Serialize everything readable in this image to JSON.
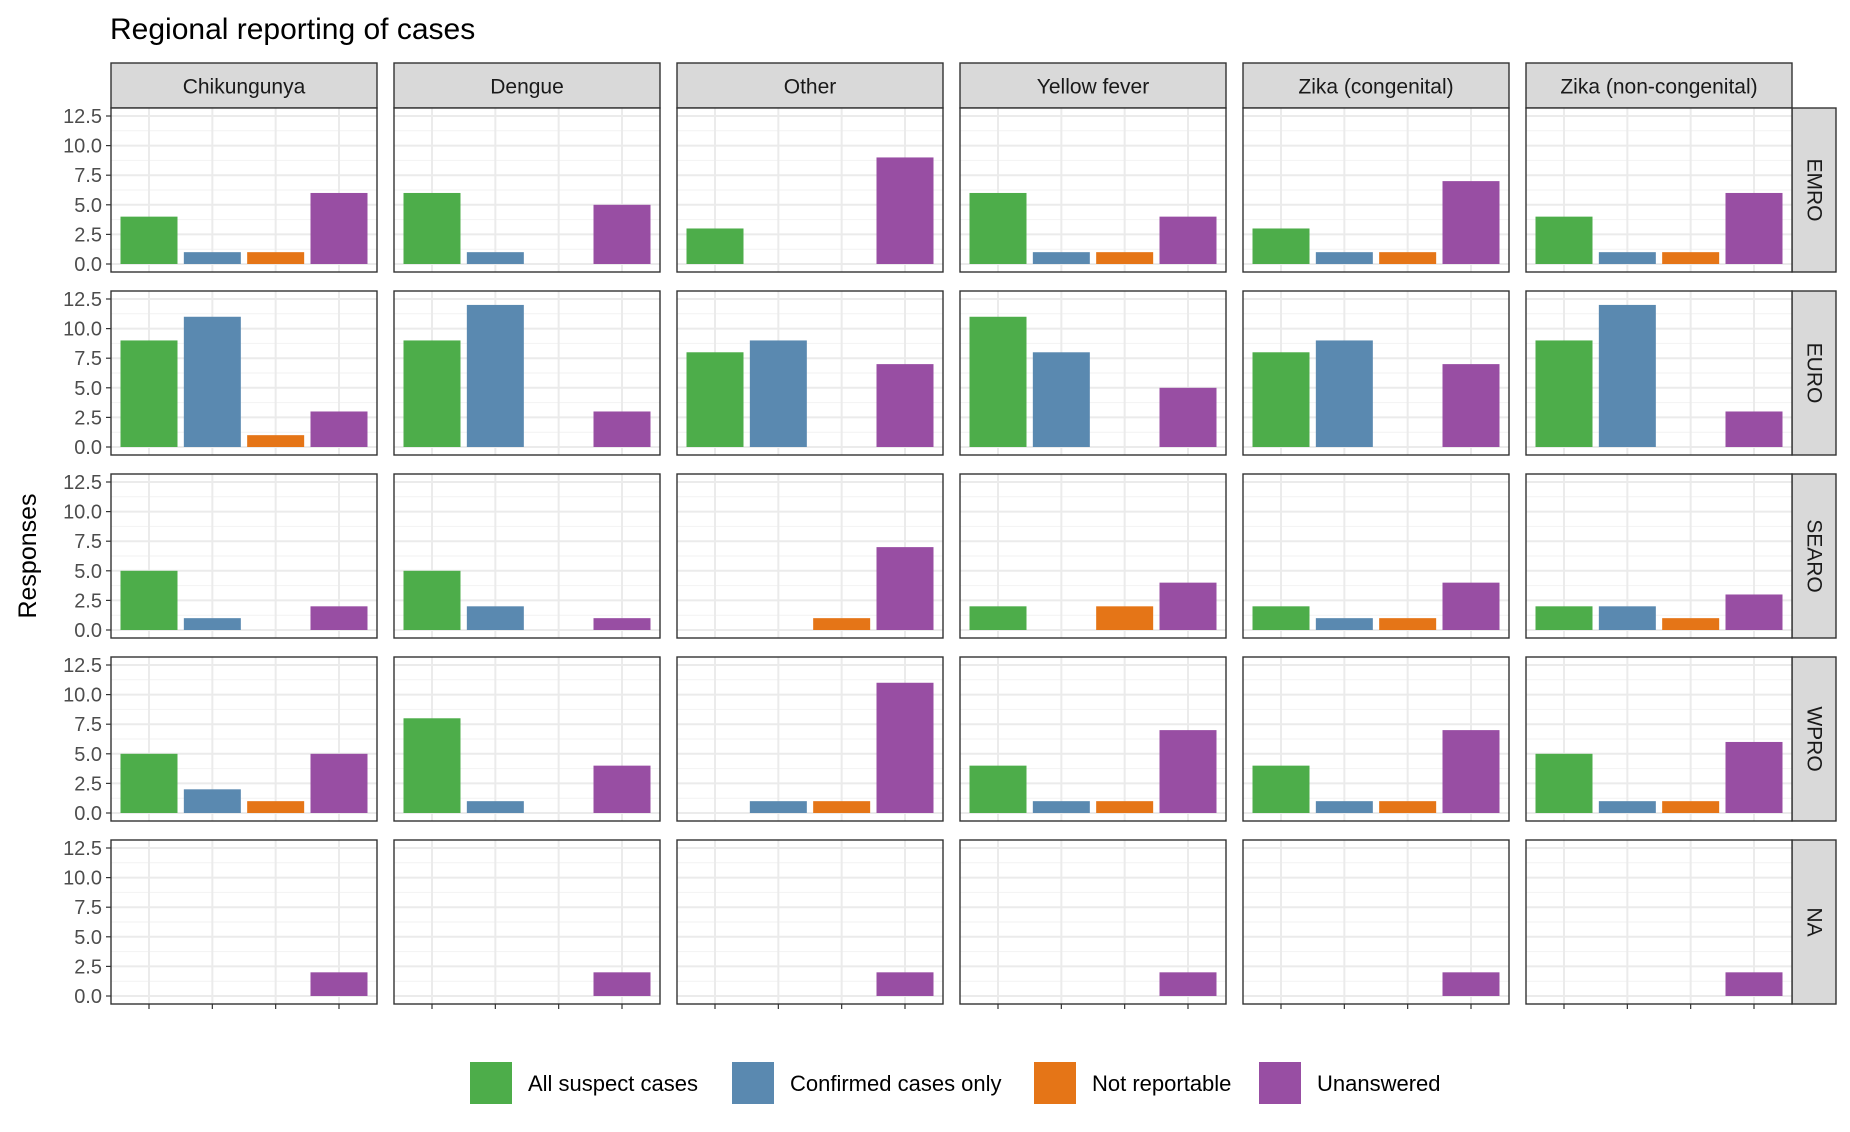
{
  "chart_data": {
    "type": "bar",
    "title": "Regional reporting of cases",
    "ylabel": "Responses",
    "xlabel": "",
    "ylim": [
      0,
      12.5
    ],
    "yticks": [
      "0.0",
      "2.5",
      "5.0",
      "7.5",
      "10.0",
      "12.5"
    ],
    "categories": [
      "All suspect cases",
      "Confirmed cases only",
      "Not reportable",
      "Unanswered"
    ],
    "colors": {
      "All suspect cases": "#4dad4a",
      "Confirmed cases only": "#5a89b0",
      "Not reportable": "#e57517",
      "Unanswered": "#984ea3"
    },
    "columns": [
      "Chikungunya",
      "Dengue",
      "Other",
      "Yellow fever",
      "Zika (congenital)",
      "Zika (non-congenital)"
    ],
    "rows": [
      "EMRO",
      "EURO",
      "SEARO",
      "WPRO",
      "NA"
    ],
    "grid": true,
    "legend_position": "bottom",
    "values": {
      "EMRO": {
        "Chikungunya": [
          4,
          1,
          1,
          6
        ],
        "Dengue": [
          6,
          1,
          0,
          5
        ],
        "Other": [
          3,
          0,
          0,
          9
        ],
        "Yellow fever": [
          6,
          1,
          1,
          4
        ],
        "Zika (congenital)": [
          3,
          1,
          1,
          7
        ],
        "Zika (non-congenital)": [
          4,
          1,
          1,
          6
        ]
      },
      "EURO": {
        "Chikungunya": [
          9,
          11,
          1,
          3
        ],
        "Dengue": [
          9,
          12,
          0,
          3
        ],
        "Other": [
          8,
          9,
          0,
          7
        ],
        "Yellow fever": [
          11,
          8,
          0,
          5
        ],
        "Zika (congenital)": [
          8,
          9,
          0,
          7
        ],
        "Zika (non-congenital)": [
          9,
          12,
          0,
          3
        ]
      },
      "SEARO": {
        "Chikungunya": [
          5,
          1,
          0,
          2
        ],
        "Dengue": [
          5,
          2,
          0,
          1
        ],
        "Other": [
          0,
          0,
          1,
          7
        ],
        "Yellow fever": [
          2,
          0,
          2,
          4
        ],
        "Zika (congenital)": [
          2,
          1,
          1,
          4
        ],
        "Zika (non-congenital)": [
          2,
          2,
          1,
          3
        ]
      },
      "WPRO": {
        "Chikungunya": [
          5,
          2,
          1,
          5
        ],
        "Dengue": [
          8,
          1,
          0,
          4
        ],
        "Other": [
          0,
          1,
          1,
          11
        ],
        "Yellow fever": [
          4,
          1,
          1,
          7
        ],
        "Zika (congenital)": [
          4,
          1,
          1,
          7
        ],
        "Zika (non-congenital)": [
          5,
          1,
          1,
          6
        ]
      },
      "NA": {
        "Chikungunya": [
          0,
          0,
          0,
          2
        ],
        "Dengue": [
          0,
          0,
          0,
          2
        ],
        "Other": [
          0,
          0,
          0,
          2
        ],
        "Yellow fever": [
          0,
          0,
          0,
          2
        ],
        "Zika (congenital)": [
          0,
          0,
          0,
          2
        ],
        "Zika (non-congenital)": [
          0,
          0,
          0,
          2
        ]
      }
    }
  }
}
